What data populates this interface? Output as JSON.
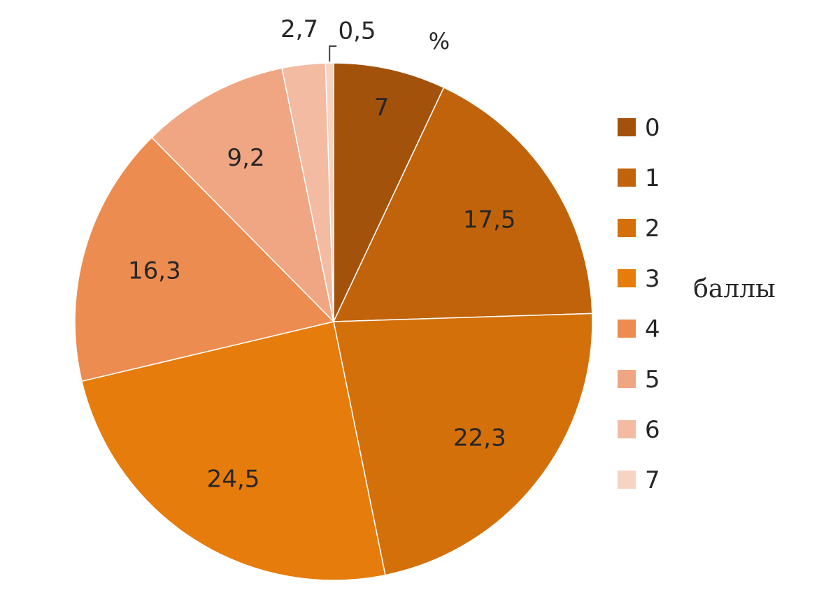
{
  "chart_data": {
    "type": "pie",
    "unit_label": "%",
    "legend_title": "баллы",
    "legend_position": "right",
    "slices": [
      {
        "category": "0",
        "value": 7,
        "label": "7",
        "color": "#a3520b"
      },
      {
        "category": "1",
        "value": 17.5,
        "label": "17,5",
        "color": "#c0630b"
      },
      {
        "category": "2",
        "value": 22.3,
        "label": "22,3",
        "color": "#d4700a"
      },
      {
        "category": "3",
        "value": 24.5,
        "label": "24,5",
        "color": "#e67c0c"
      },
      {
        "category": "4",
        "value": 16.3,
        "label": "16,3",
        "color": "#ec8c50"
      },
      {
        "category": "5",
        "value": 9.2,
        "label": "9,2",
        "color": "#f0a683"
      },
      {
        "category": "6",
        "value": 2.7,
        "label": "2,7",
        "color": "#f2bba2"
      },
      {
        "category": "7",
        "value": 0.5,
        "label": "0,5",
        "color": "#f6d3c2"
      }
    ]
  }
}
